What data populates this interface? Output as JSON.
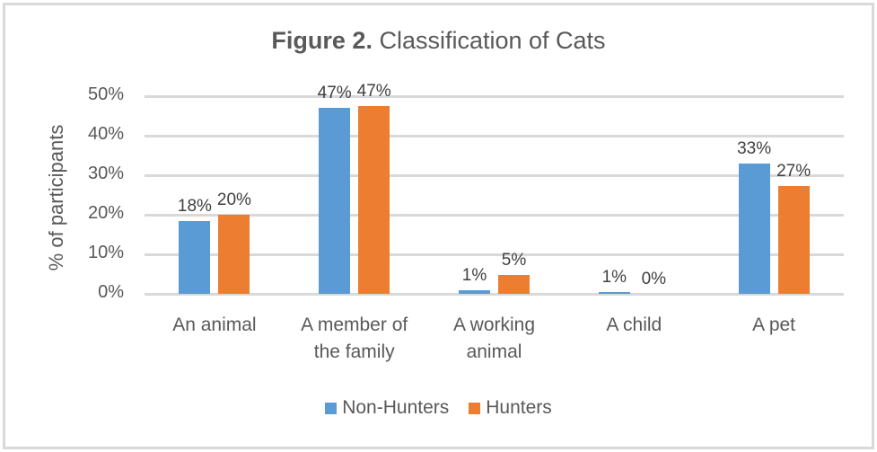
{
  "chart_data": {
    "type": "bar",
    "title_bold": "Figure 2.",
    "title_rest": " Classification of Cats",
    "title": "Figure 2. Classification of Cats",
    "xlabel": "",
    "ylabel": "% of participants",
    "ylim": [
      0,
      50
    ],
    "yticks": [
      "0%",
      "10%",
      "20%",
      "30%",
      "40%",
      "50%"
    ],
    "grid": true,
    "legend_position": "bottom",
    "categories": [
      "An animal",
      "A member of the family",
      "A working animal",
      "A child",
      "A pet"
    ],
    "category_lines": [
      [
        "An animal"
      ],
      [
        "A member of",
        "the family"
      ],
      [
        "A working",
        "animal"
      ],
      [
        "A child"
      ],
      [
        "A pet"
      ]
    ],
    "series": [
      {
        "name": "Non-Hunters",
        "color": "#5b9bd5",
        "values": [
          18,
          47,
          1,
          1,
          33
        ],
        "labels": [
          "18%",
          "47%",
          "1%",
          "1%",
          "33%"
        ],
        "exact": [
          18.3,
          47.0,
          0.8,
          0.5,
          33.0
        ]
      },
      {
        "name": "Hunters",
        "color": "#ed7d31",
        "values": [
          20,
          47,
          5,
          0,
          27
        ],
        "labels": [
          "20%",
          "47%",
          "5%",
          "0%",
          "27%"
        ],
        "exact": [
          20.0,
          47.4,
          4.7,
          0.0,
          27.3
        ]
      }
    ]
  }
}
